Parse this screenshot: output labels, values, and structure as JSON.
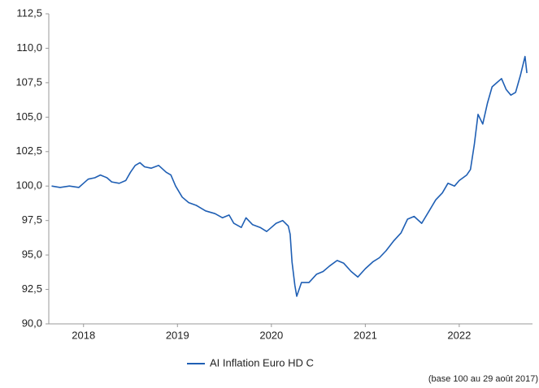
{
  "chart_data": {
    "type": "line",
    "x": [
      2017.66,
      2017.75,
      2017.85,
      2017.95,
      2018.0,
      2018.05,
      2018.12,
      2018.18,
      2018.25,
      2018.3,
      2018.38,
      2018.45,
      2018.5,
      2018.55,
      2018.6,
      2018.65,
      2018.72,
      2018.8,
      2018.88,
      2018.93,
      2018.98,
      2019.05,
      2019.12,
      2019.2,
      2019.3,
      2019.4,
      2019.48,
      2019.55,
      2019.6,
      2019.68,
      2019.73,
      2019.8,
      2019.88,
      2019.95,
      2020.0,
      2020.05,
      2020.12,
      2020.18,
      2020.2,
      2020.22,
      2020.25,
      2020.27,
      2020.32,
      2020.4,
      2020.48,
      2020.55,
      2020.62,
      2020.7,
      2020.77,
      2020.85,
      2020.92,
      2021.0,
      2021.08,
      2021.15,
      2021.22,
      2021.3,
      2021.38,
      2021.45,
      2021.52,
      2021.6,
      2021.68,
      2021.75,
      2021.82,
      2021.88,
      2021.95,
      2022.0,
      2022.08,
      2022.12,
      2022.16,
      2022.2,
      2022.25,
      2022.3,
      2022.35,
      2022.4,
      2022.45,
      2022.5,
      2022.55,
      2022.6,
      2022.65,
      2022.7,
      2022.72
    ],
    "series": [
      {
        "name": "AI Inflation Euro HD C",
        "color": "#1f5fb4",
        "values": [
          100.0,
          99.9,
          100.0,
          99.9,
          100.2,
          100.5,
          100.6,
          100.8,
          100.6,
          100.3,
          100.2,
          100.4,
          101.0,
          101.5,
          101.7,
          101.4,
          101.3,
          101.5,
          101.0,
          100.8,
          100.0,
          99.2,
          98.8,
          98.6,
          98.2,
          98.0,
          97.7,
          97.9,
          97.3,
          97.0,
          97.7,
          97.2,
          97.0,
          96.7,
          97.0,
          97.3,
          97.5,
          97.1,
          96.5,
          94.5,
          92.8,
          92.0,
          93.0,
          93.0,
          93.6,
          93.8,
          94.2,
          94.6,
          94.4,
          93.8,
          93.4,
          94.0,
          94.5,
          94.8,
          95.3,
          96.0,
          96.6,
          97.6,
          97.8,
          97.3,
          98.2,
          99.0,
          99.5,
          100.2,
          100.0,
          100.4,
          100.8,
          101.2,
          103.0,
          105.2,
          104.5,
          106.0,
          107.2,
          107.5,
          107.8,
          107.0,
          106.6,
          106.8,
          108.0,
          109.4,
          108.2
        ]
      }
    ],
    "xlim": [
      2017.63,
      2022.78
    ],
    "xticks": [
      2018,
      2019,
      2020,
      2021,
      2022
    ],
    "ylim": [
      90,
      112.5
    ],
    "yticks": [
      {
        "value": 90,
        "label": "90,0"
      },
      {
        "value": 92.5,
        "label": "92,5"
      },
      {
        "value": 95,
        "label": "95,0"
      },
      {
        "value": 97.5,
        "label": "97,5"
      },
      {
        "value": 100,
        "label": "100,0"
      },
      {
        "value": 102.5,
        "label": "102,5"
      },
      {
        "value": 105,
        "label": "105,0"
      },
      {
        "value": 107.5,
        "label": "107,5"
      },
      {
        "value": 110,
        "label": "110,0"
      },
      {
        "value": 112.5,
        "label": "112,5"
      }
    ],
    "legend": "bottom",
    "note": "(base 100 au 29 août 2017)"
  }
}
